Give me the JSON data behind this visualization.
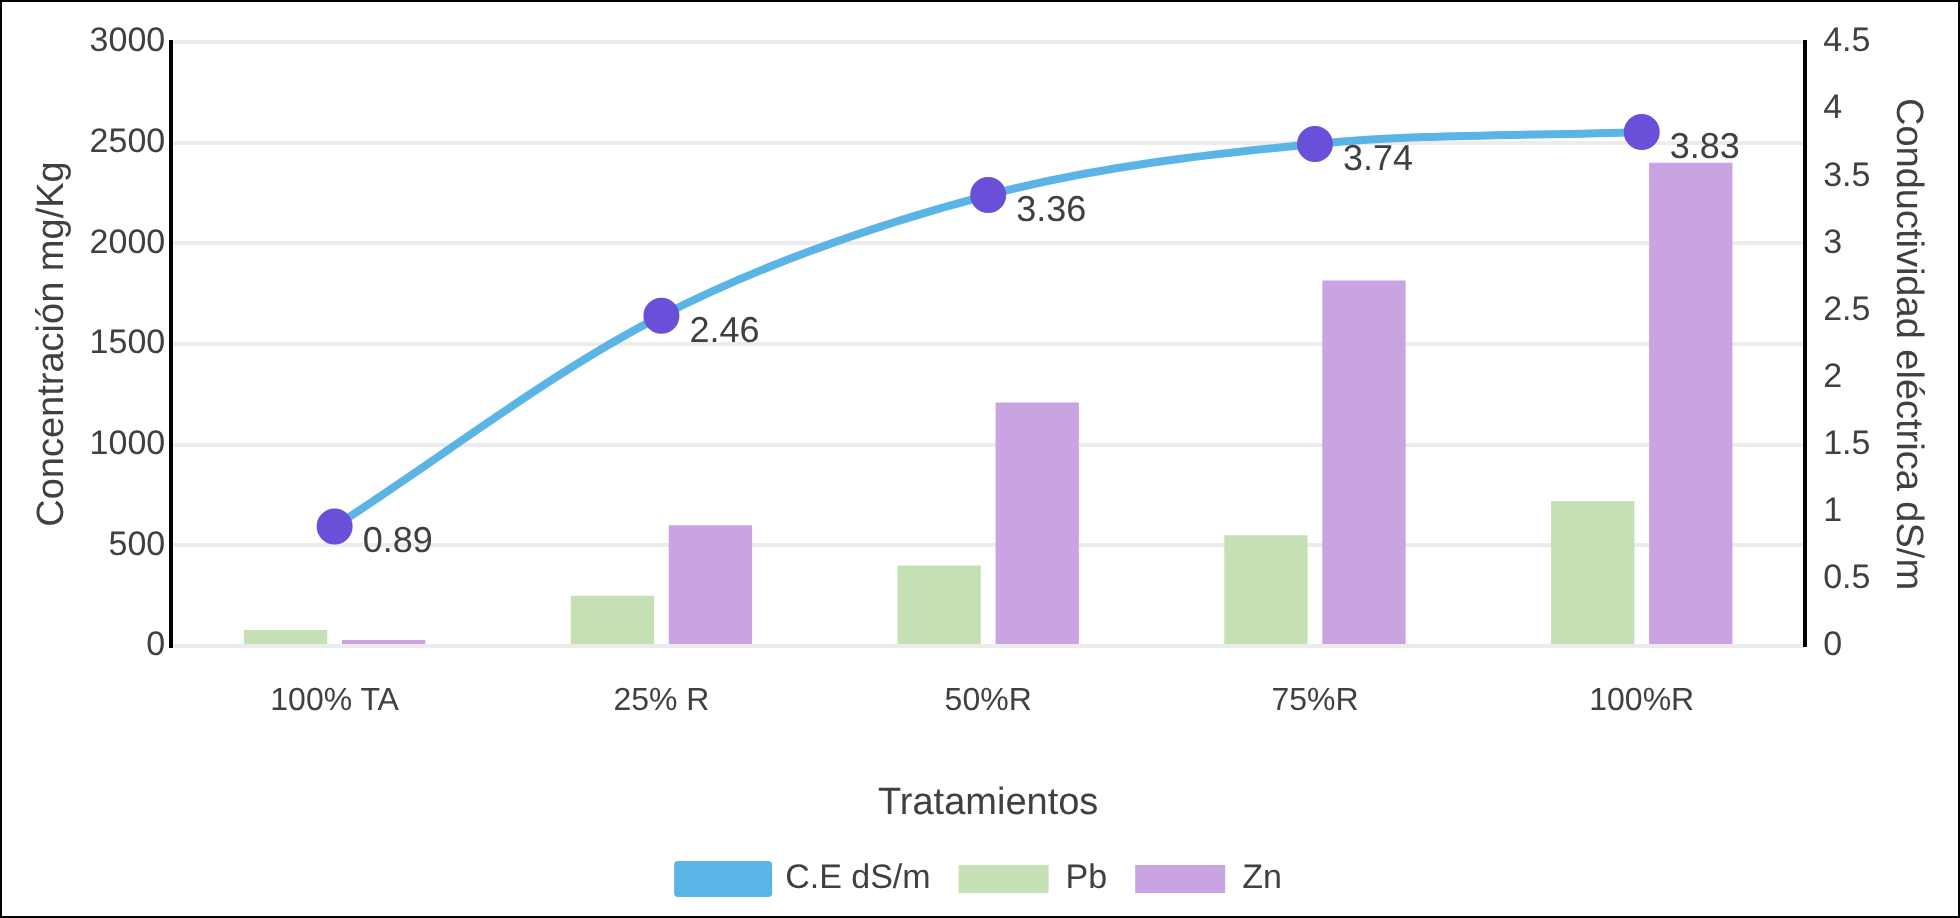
{
  "chart_data": {
    "type": "bar",
    "xlabel": "Tratamientos",
    "ylabel": "Concentración mg/Kg",
    "y2label": "Conductividad eléctrica dS/m",
    "categories": [
      "100% TA",
      "25% R",
      "50%R",
      "75%R",
      "100%R"
    ],
    "series": [
      {
        "name": "Pb",
        "color": "#c5e0b4",
        "values": [
          80,
          250,
          400,
          550,
          720
        ]
      },
      {
        "name": "Zn",
        "color": "#c9a3e2",
        "values": [
          30,
          600,
          1210,
          1815,
          2400
        ]
      },
      {
        "name": "C.E dS/m",
        "type": "line",
        "axis": "y2",
        "color": "#5ab4e5",
        "marker": "circle",
        "values": [
          0.89,
          2.46,
          3.36,
          3.74,
          3.83
        ],
        "value_labels": [
          "0.89",
          "2.46",
          "3.36",
          "3.74",
          "3.83"
        ]
      }
    ],
    "ylim": [
      0,
      3000
    ],
    "yticks": [
      0,
      500,
      1000,
      1500,
      2000,
      2500,
      3000
    ],
    "y2lim": [
      0,
      4.5
    ],
    "y2ticks": [
      0,
      0.5,
      1,
      1.5,
      2,
      2.5,
      3,
      3.5,
      4,
      4.5
    ],
    "grid": "y",
    "legend": "bottom"
  }
}
